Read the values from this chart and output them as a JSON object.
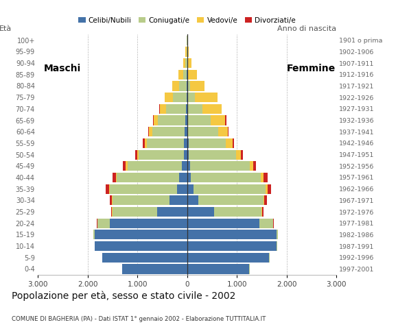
{
  "age_groups": [
    "0-4",
    "5-9",
    "10-14",
    "15-19",
    "20-24",
    "25-29",
    "30-34",
    "35-39",
    "40-44",
    "45-49",
    "50-54",
    "55-59",
    "60-64",
    "65-69",
    "70-74",
    "75-79",
    "80-84",
    "85-89",
    "90-94",
    "95-99",
    "100+"
  ],
  "birth_years": [
    "1997-2001",
    "1992-1996",
    "1987-1991",
    "1982-1986",
    "1977-1981",
    "1972-1976",
    "1967-1971",
    "1962-1966",
    "1957-1961",
    "1952-1956",
    "1947-1951",
    "1942-1946",
    "1937-1941",
    "1932-1936",
    "1927-1931",
    "1922-1926",
    "1917-1921",
    "1912-1916",
    "1907-1911",
    "1902-1906",
    "1901 o prima"
  ],
  "males": {
    "celibi": [
      1300,
      1700,
      1850,
      1850,
      1550,
      600,
      350,
      200,
      160,
      100,
      70,
      60,
      50,
      35,
      20,
      10,
      5,
      3,
      1,
      1,
      0
    ],
    "coniugati": [
      10,
      10,
      10,
      30,
      250,
      900,
      1150,
      1350,
      1250,
      1100,
      900,
      750,
      650,
      550,
      400,
      280,
      150,
      80,
      30,
      10,
      5
    ],
    "vedovi": [
      0,
      0,
      0,
      0,
      5,
      10,
      15,
      20,
      25,
      30,
      35,
      45,
      65,
      90,
      130,
      160,
      140,
      95,
      45,
      18,
      7
    ],
    "divorziati": [
      0,
      0,
      0,
      0,
      10,
      20,
      35,
      60,
      65,
      55,
      40,
      30,
      20,
      15,
      10,
      5,
      3,
      2,
      1,
      0,
      0
    ]
  },
  "females": {
    "nubili": [
      1250,
      1650,
      1800,
      1800,
      1450,
      550,
      230,
      130,
      80,
      55,
      40,
      30,
      25,
      20,
      10,
      7,
      4,
      2,
      1,
      1,
      0
    ],
    "coniugate": [
      10,
      10,
      10,
      30,
      280,
      950,
      1300,
      1450,
      1400,
      1200,
      950,
      750,
      600,
      450,
      300,
      150,
      60,
      20,
      5,
      3,
      1
    ],
    "vedove": [
      0,
      0,
      0,
      0,
      5,
      15,
      25,
      35,
      55,
      70,
      90,
      130,
      190,
      300,
      380,
      450,
      280,
      170,
      80,
      30,
      12
    ],
    "divorziate": [
      0,
      0,
      0,
      0,
      10,
      25,
      45,
      75,
      90,
      65,
      45,
      30,
      20,
      15,
      5,
      3,
      2,
      1,
      0,
      0,
      0
    ]
  },
  "color_celibi": "#4472A8",
  "color_coniugati": "#B8CC8A",
  "color_vedovi": "#F5C842",
  "color_divorziati": "#CC2222",
  "title": "Popolazione per età, sesso e stato civile - 2002",
  "subtitle": "COMUNE DI BAGHERIA (PA) - Dati ISTAT 1° gennaio 2002 - Elaborazione TUTTITALIA.IT",
  "label_maschi": "Maschi",
  "label_femmine": "Femmine",
  "label_eta": "Età",
  "label_anno": "Anno di nascita",
  "xlim": 3000,
  "legend_labels": [
    "Celibi/Nubili",
    "Coniugati/e",
    "Vedovi/e",
    "Divorziati/e"
  ],
  "background_color": "#ffffff",
  "bar_height": 0.85
}
